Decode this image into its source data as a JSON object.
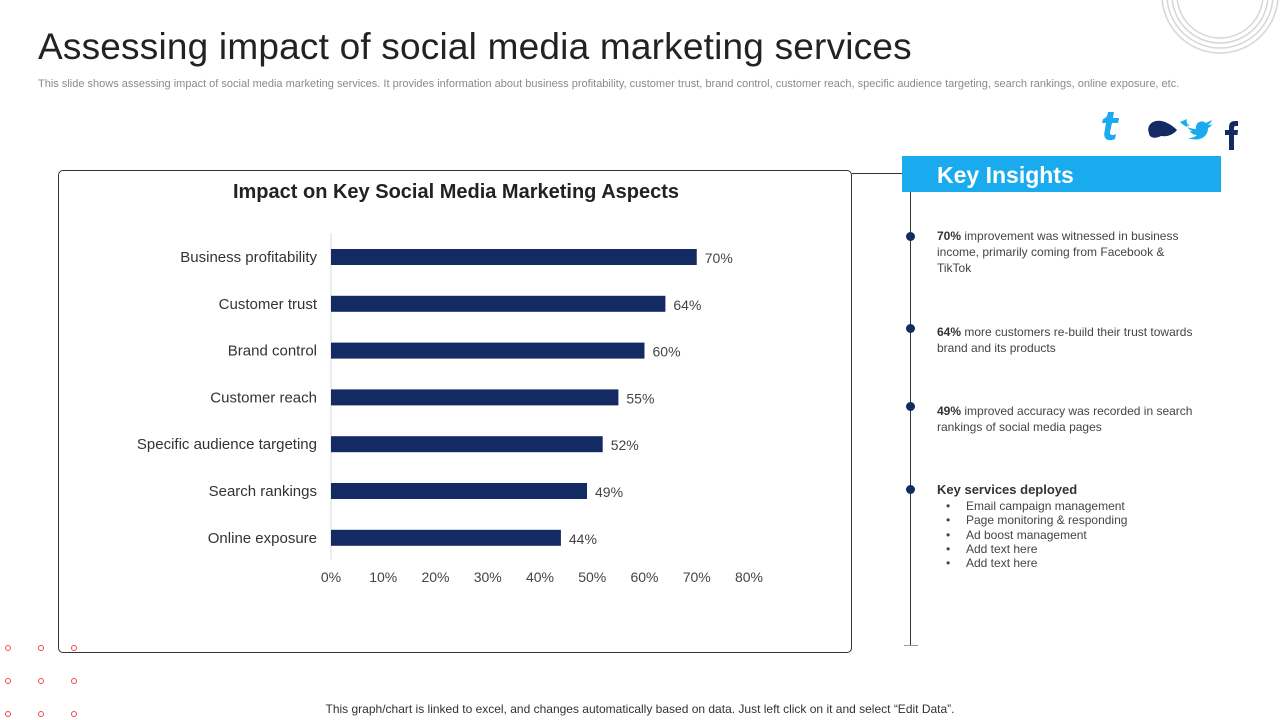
{
  "page": {
    "title": "Assessing impact of social media marketing services",
    "subtitle": "This slide shows assessing impact of social media marketing services. It provides information about business profitability, customer trust, brand control, customer reach, specific audience targeting, search rankings, online exposure, etc.",
    "footnote": "This graph/chart is linked to excel,  and changes automatically based on data. Just left click on it and select “Edit Data”."
  },
  "colors": {
    "bar": "#142a62",
    "accent": "#1aabef",
    "dot_accent": "#e85050"
  },
  "icons": [
    "tumblr-icon",
    "skype-icon",
    "twitter-icon",
    "facebook-icon"
  ],
  "chart_data": {
    "type": "bar",
    "orientation": "horizontal",
    "title": "Impact on Key Social Media Marketing Aspects",
    "categories": [
      "Business profitability",
      "Customer trust",
      "Brand control",
      "Customer reach",
      "Specific audience targeting",
      "Search rankings",
      "Online exposure"
    ],
    "values": [
      70,
      64,
      60,
      55,
      52,
      49,
      44
    ],
    "value_labels": [
      "70%",
      "64%",
      "60%",
      "55%",
      "52%",
      "49%",
      "44%"
    ],
    "xlim": [
      0,
      80
    ],
    "xticks": [
      "0%",
      "10%",
      "20%",
      "30%",
      "40%",
      "50%",
      "60%",
      "70%",
      "80%"
    ],
    "xlabel": "",
    "ylabel": "",
    "grid": false
  },
  "insights": {
    "header": "Key Insights",
    "items": [
      {
        "bold": "70%",
        "text": " improvement  was witnessed in business income, primarily coming from Facebook & TikTok"
      },
      {
        "bold": "64%",
        "text": " more customers re-build their trust towards brand and its products"
      },
      {
        "bold": "49%",
        "text": " improved accuracy was recorded in search rankings of social media pages"
      }
    ],
    "services_title": "Key services deployed",
    "services": [
      "Email campaign management",
      "Page monitoring & responding",
      "Ad boost management",
      "Add text here",
      "Add text here"
    ]
  }
}
